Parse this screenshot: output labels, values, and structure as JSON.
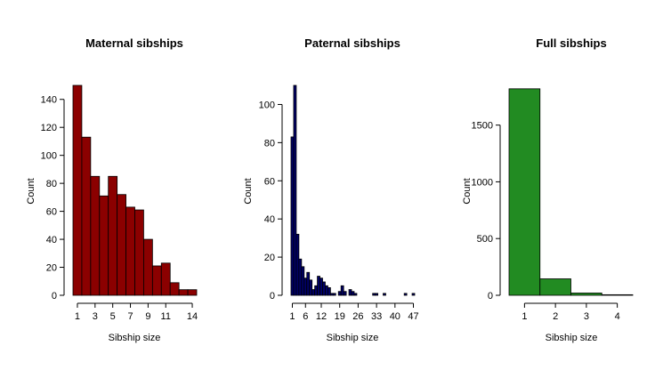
{
  "chart_data": [
    {
      "type": "bar",
      "title": "Maternal sibships",
      "xlabel": "Sibship size",
      "ylabel": "Count",
      "color": "#8b0000",
      "x_domain": [
        0.5,
        14.5
      ],
      "ylim": [
        0,
        150
      ],
      "categories": [
        1,
        2,
        3,
        4,
        5,
        6,
        7,
        8,
        9,
        10,
        11,
        12,
        13,
        14
      ],
      "values": [
        150,
        113,
        85,
        71,
        85,
        72,
        63,
        61,
        40,
        21,
        23,
        9,
        4,
        4
      ],
      "x_ticks": [
        1,
        3,
        5,
        7,
        9,
        11,
        14
      ],
      "y_ticks": [
        0,
        20,
        40,
        60,
        80,
        100,
        120,
        140
      ],
      "grid": false
    },
    {
      "type": "bar",
      "title": "Paternal sibships",
      "xlabel": "Sibship size",
      "ylabel": "Count",
      "color": "#000066",
      "x_domain": [
        0.5,
        47.5
      ],
      "ylim": [
        0,
        110
      ],
      "categories": [
        1,
        2,
        3,
        4,
        5,
        6,
        7,
        8,
        9,
        10,
        11,
        12,
        13,
        14,
        15,
        16,
        17,
        18,
        19,
        20,
        21,
        22,
        23,
        24,
        25,
        26,
        27,
        28,
        29,
        30,
        31,
        32,
        33,
        34,
        35,
        36,
        37,
        38,
        39,
        40,
        41,
        42,
        43,
        44,
        45,
        46,
        47
      ],
      "values": [
        83,
        110,
        32,
        19,
        15,
        9,
        12,
        8,
        3,
        5,
        10,
        9,
        7,
        5,
        4,
        1,
        1,
        0,
        2,
        5,
        2,
        0,
        3,
        2,
        1,
        0,
        0,
        0,
        0,
        0,
        0,
        1,
        1,
        0,
        0,
        1,
        0,
        0,
        0,
        0,
        0,
        0,
        0,
        1,
        0,
        0,
        1
      ],
      "x_ticks": [
        1,
        6,
        12,
        19,
        26,
        33,
        40,
        47
      ],
      "y_ticks": [
        0,
        20,
        40,
        60,
        80,
        100
      ],
      "grid": false
    },
    {
      "type": "bar",
      "title": "Full sibships",
      "xlabel": "Sibship size",
      "ylabel": "Count",
      "color": "#228b22",
      "x_domain": [
        0.5,
        4.5
      ],
      "ylim": [
        0,
        1850
      ],
      "categories": [
        1,
        2,
        3,
        4
      ],
      "values": [
        1820,
        145,
        20,
        5
      ],
      "x_ticks": [
        1,
        2,
        3,
        4
      ],
      "y_ticks": [
        0,
        500,
        1000,
        1500
      ],
      "grid": false
    }
  ]
}
